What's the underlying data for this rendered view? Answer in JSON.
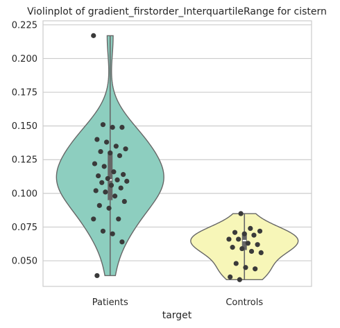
{
  "chart_data": {
    "type": "violin",
    "title": "Violinplot of gradient_firstorder_InterquartileRange for cistern",
    "xlabel": "target",
    "ylabel": "",
    "ylim": [
      0.031,
      0.228
    ],
    "yticks": [
      "0.050",
      "0.075",
      "0.100",
      "0.125",
      "0.150",
      "0.175",
      "0.200",
      "0.225"
    ],
    "ytick_values": [
      0.05,
      0.075,
      0.1,
      0.125,
      0.15,
      0.175,
      0.2,
      0.225
    ],
    "grid": "horizontal",
    "categories": [
      "Patients",
      "Controls"
    ],
    "series": [
      {
        "category": "Patients",
        "color": "#8dcebf",
        "min": 0.039,
        "q1": 0.095,
        "median": 0.11,
        "q3": 0.131,
        "max": 0.217,
        "points": [
          0.217,
          0.151,
          0.149,
          0.149,
          0.14,
          0.138,
          0.135,
          0.133,
          0.131,
          0.13,
          0.128,
          0.122,
          0.12,
          0.116,
          0.114,
          0.113,
          0.111,
          0.11,
          0.109,
          0.108,
          0.106,
          0.104,
          0.102,
          0.101,
          0.098,
          0.094,
          0.091,
          0.089,
          0.081,
          0.081,
          0.072,
          0.07,
          0.064,
          0.039
        ]
      },
      {
        "category": "Controls",
        "color": "#f7f6b8",
        "min": 0.036,
        "q1": 0.058,
        "median": 0.065,
        "q3": 0.07,
        "max": 0.085,
        "points": [
          0.085,
          0.074,
          0.072,
          0.071,
          0.07,
          0.069,
          0.066,
          0.066,
          0.063,
          0.062,
          0.06,
          0.059,
          0.057,
          0.056,
          0.048,
          0.045,
          0.044,
          0.038,
          0.036
        ]
      }
    ]
  },
  "colors": {
    "outline": "#666666",
    "box": "#666666",
    "median": "#ffffff",
    "points": "#3a3a3a",
    "grid": "#cccccc",
    "axes_frame": "#cccccc"
  }
}
